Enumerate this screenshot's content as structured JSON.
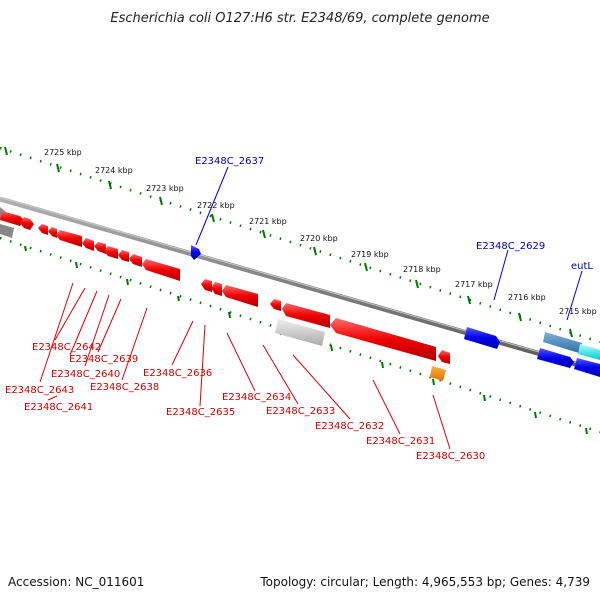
{
  "title": "Escherichia coli O127:H6 str. E2348/69, complete genome",
  "footer": {
    "accession": "Accession: NC_011601",
    "summary": "Topology: circular; Length: 4,965,553 bp; Genes: 4,739"
  },
  "ruler": [
    "2725 kbp",
    "2724 kbp",
    "2723 kbp",
    "2722 kbp",
    "2721 kbp",
    "2720 kbp",
    "2719 kbp",
    "2718 kbp",
    "2717 kbp",
    "2716 kbp",
    "2715 kbp"
  ],
  "gene_labels": {
    "g2637": "E2348C_2637",
    "g2629": "E2348C_2629",
    "eutL": "eutL",
    "g2642": "E2348C_2642",
    "g2639": "E2348C_2639",
    "g2640": "E2348C_2640",
    "g2643": "E2348C_2643",
    "g2638": "E2348C_2638",
    "g2641": "E2348C_2641",
    "g2636": "E2348C_2636",
    "g2635": "E2348C_2635",
    "g2634": "E2348C_2634",
    "g2633": "E2348C_2633",
    "g2632": "E2348C_2632",
    "g2631": "E2348C_2631",
    "g2630": "E2348C_2630"
  },
  "colors": {
    "forward": "#0000ee",
    "reverse": "#ee0000",
    "backbone": "#888888",
    "tick": "#007700",
    "orange": "#ff8800",
    "cyan": "#00dddd"
  }
}
